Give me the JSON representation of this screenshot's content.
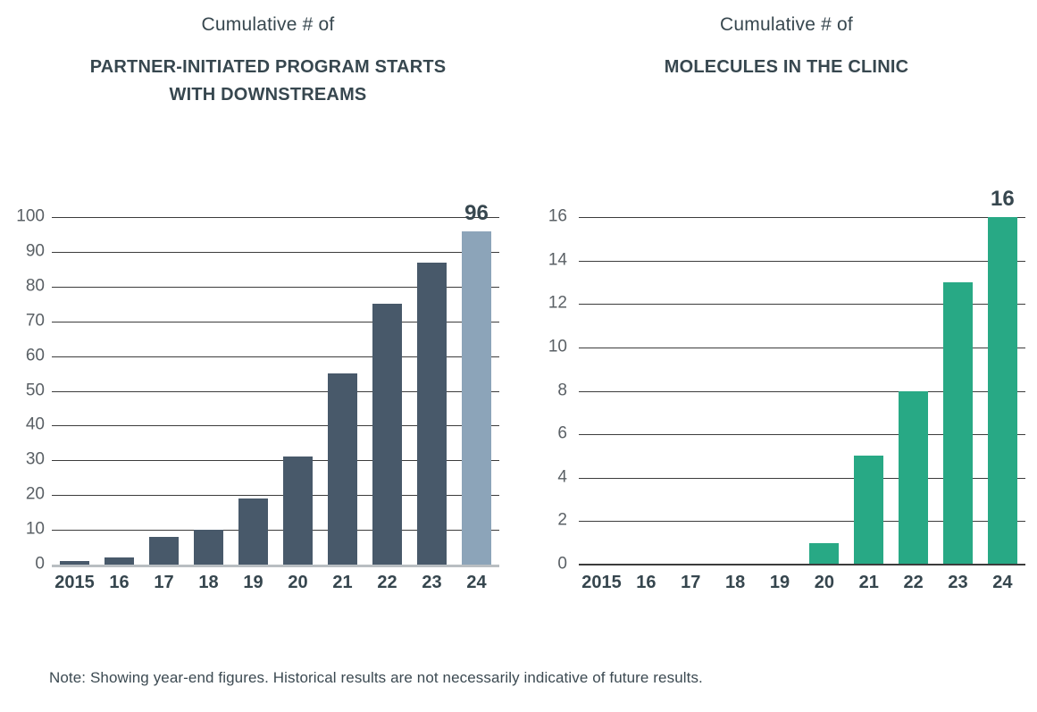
{
  "note": "Note: Showing year-end figures. Historical results are not necessarily indicative of future results.",
  "chart_data": [
    {
      "type": "bar",
      "id": "partner-initiated-program-starts",
      "title_prefix": "Cumulative # of",
      "title": "PARTNER-INITIATED PROGRAM STARTS WITH DOWNSTREAMS",
      "categories": [
        "2015",
        "16",
        "17",
        "18",
        "19",
        "20",
        "21",
        "22",
        "23",
        "24"
      ],
      "values": [
        1,
        2,
        8,
        10,
        19,
        31,
        55,
        75,
        87,
        96
      ],
      "ylim": [
        0,
        100
      ],
      "ytick_step": 10,
      "grid": true,
      "legend": "none",
      "bar_color": "#48596a",
      "highlight_last_color": "#8ca4b9",
      "last_value_label": "96"
    },
    {
      "type": "bar",
      "id": "molecules-in-the-clinic",
      "title_prefix": "Cumulative # of",
      "title": "MOLECULES IN THE CLINIC",
      "categories": [
        "2015",
        "16",
        "17",
        "18",
        "19",
        "20",
        "21",
        "22",
        "23",
        "24"
      ],
      "values": [
        0,
        0,
        0,
        0,
        0,
        1,
        5,
        8,
        13,
        16
      ],
      "ylim": [
        0,
        16
      ],
      "ytick_step": 2,
      "grid": true,
      "legend": "none",
      "bar_color": "#28a985",
      "highlight_last_color": null,
      "last_value_label": "16"
    }
  ],
  "colors": {
    "title_text": "#37474f",
    "y_tick_text": "#5a6065",
    "x_tick_text": "#36464e",
    "gridline": "#3c3c3c",
    "left_baseline": "#b9bec2"
  }
}
